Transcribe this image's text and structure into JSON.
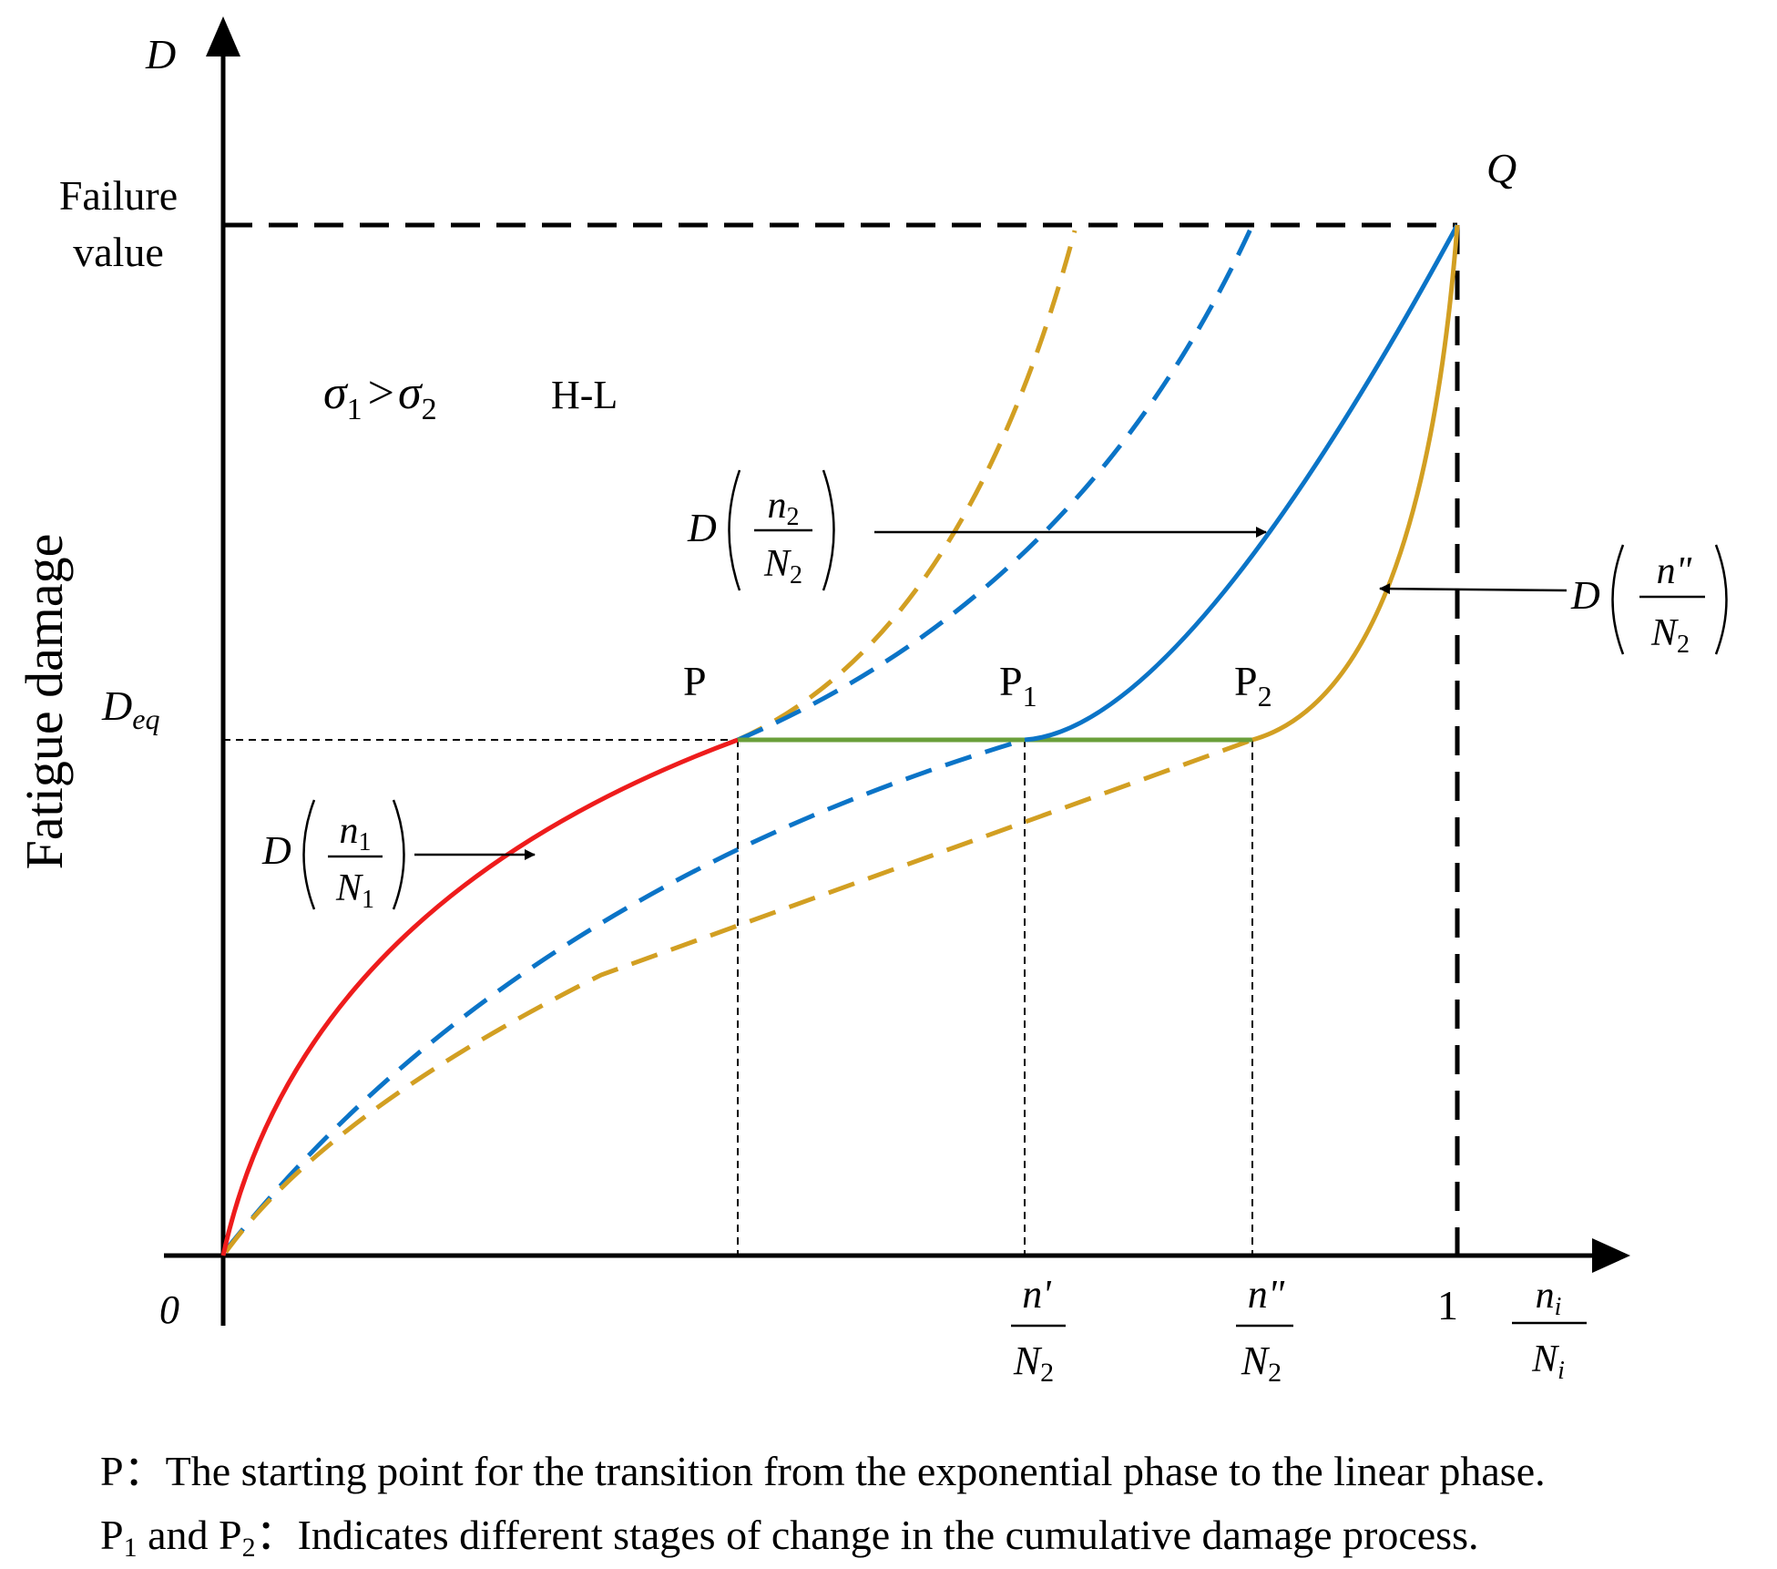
{
  "axes": {
    "y_symbol": "D",
    "y_title": "Fatigue damage",
    "origin": "0",
    "failure_line1": "Failure",
    "failure_line2": "value",
    "deq_main": "D",
    "deq_sub": "eq",
    "x_one": "1",
    "x_frac_num_main": "n",
    "x_frac_num_sub": "i",
    "x_frac_den_main": "N",
    "x_frac_den_sub": "i",
    "tick1_num": "n'",
    "tick1_den_main": "N",
    "tick1_den_sub": "2",
    "tick2_num": "n\"",
    "tick2_den_main": "N",
    "tick2_den_sub": "2"
  },
  "points": {
    "q": "Q",
    "p": "P",
    "p1_main": "P",
    "p1_sub": "1",
    "p2_main": "P",
    "p2_sub": "2"
  },
  "condition": {
    "sigma": "σ",
    "sub1": "1",
    "gt": ">",
    "sub2": "2",
    "sequence": "H-L"
  },
  "labels": {
    "d_n1": {
      "d": "D",
      "num_main": "n",
      "num_sub": "1",
      "den_main": "N",
      "den_sub": "1"
    },
    "d_n2": {
      "d": "D",
      "num_main": "n",
      "num_sub": "2",
      "den_main": "N",
      "den_sub": "2"
    },
    "d_npp": {
      "d": "D",
      "num_main": "n\"",
      "den_main": "N",
      "den_sub": "2"
    }
  },
  "colors": {
    "red": "#ee1c1c",
    "blue": "#0b74c7",
    "gold": "#d29f22",
    "green": "#6a9f3a",
    "black": "#000000"
  },
  "caption": {
    "line1_label": "P",
    "line1_text": "The starting point for the transition from the exponential phase to the linear phase.",
    "line2_label_a_main": "P",
    "line2_label_a_sub": "1",
    "line2_and": "and",
    "line2_label_b_main": "P",
    "line2_label_b_sub": "2",
    "line2_text": "Indicates different stages of change in the cumulative damage process."
  }
}
